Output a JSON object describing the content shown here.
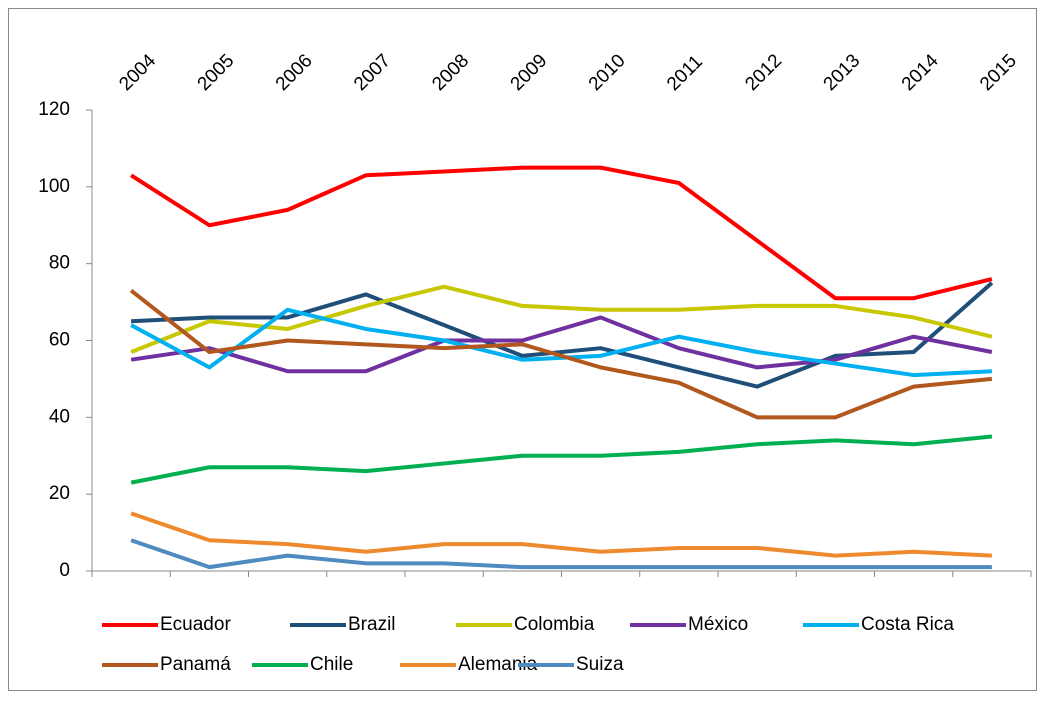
{
  "chart_data": {
    "type": "line",
    "categories": [
      "2004",
      "2005",
      "2006",
      "2007",
      "2008",
      "2009",
      "2010",
      "2011",
      "2012",
      "2013",
      "2014",
      "2015"
    ],
    "series": [
      {
        "name": "Ecuador",
        "color": "#ff0000",
        "values": [
          103,
          90,
          94,
          103,
          104,
          105,
          105,
          101,
          86,
          71,
          71,
          76
        ]
      },
      {
        "name": "Brazil",
        "color": "#1f4e79",
        "values": [
          65,
          66,
          66,
          72,
          64,
          56,
          58,
          53,
          48,
          56,
          57,
          75
        ]
      },
      {
        "name": "Colombia",
        "color": "#c8c800",
        "values": [
          57,
          65,
          63,
          69,
          74,
          69,
          68,
          68,
          69,
          69,
          66,
          61
        ]
      },
      {
        "name": "México",
        "color": "#7030a0",
        "values": [
          55,
          58,
          52,
          52,
          60,
          60,
          66,
          58,
          53,
          55,
          61,
          57
        ]
      },
      {
        "name": "Costa Rica",
        "color": "#00b0f0",
        "values": [
          64,
          53,
          68,
          63,
          60,
          55,
          56,
          61,
          57,
          54,
          51,
          52
        ]
      },
      {
        "name": "Panamá",
        "color": "#b2581f",
        "values": [
          73,
          57,
          60,
          59,
          58,
          59,
          53,
          49,
          40,
          40,
          48,
          50
        ]
      },
      {
        "name": "Chile",
        "color": "#00b050",
        "values": [
          23,
          27,
          27,
          26,
          28,
          30,
          30,
          31,
          33,
          34,
          33,
          35
        ]
      },
      {
        "name": "Alemania",
        "color": "#ee8a2e",
        "values": [
          15,
          8,
          7,
          5,
          7,
          7,
          5,
          6,
          6,
          4,
          5,
          4
        ]
      },
      {
        "name": "Suiza",
        "color": "#4f8ac0",
        "values": [
          8,
          1,
          4,
          2,
          2,
          1,
          1,
          1,
          1,
          1,
          1,
          1
        ]
      }
    ],
    "ylim": [
      0,
      120
    ],
    "yticks": [
      0,
      20,
      40,
      60,
      80,
      100,
      120
    ],
    "grid": false,
    "legend": "bottom"
  }
}
